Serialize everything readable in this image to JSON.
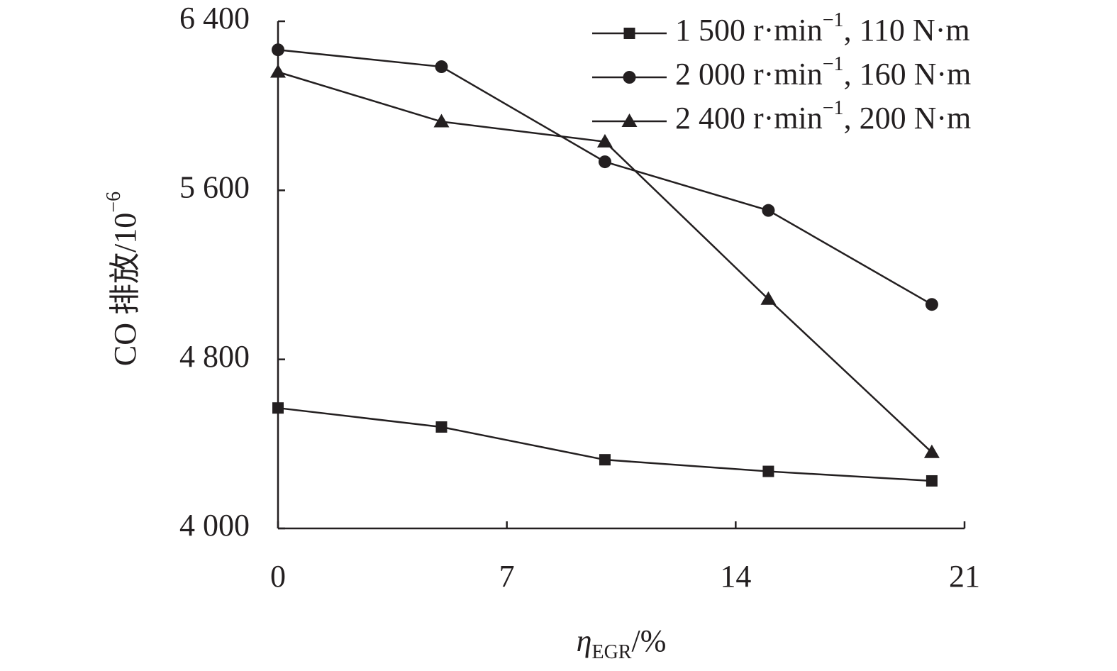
{
  "chart_data": {
    "type": "line",
    "xlabel": "ηEGR/%",
    "xlabel_main": "η",
    "xlabel_sub": "EGR",
    "xlabel_unit": "/%",
    "ylabel": "CO 排放/10⁻⁶",
    "ylabel_main": "CO 排放/10",
    "ylabel_sup": "−6",
    "xlim": [
      0,
      21
    ],
    "ylim": [
      4000,
      6400
    ],
    "x_ticks": [
      0,
      7,
      14,
      21
    ],
    "y_ticks": [
      4000,
      4800,
      5600,
      6400
    ],
    "x_tick_labels": [
      "0",
      "7",
      "14",
      "21"
    ],
    "y_tick_labels": [
      "4 000",
      "4 800",
      "5 600",
      "6 400"
    ],
    "x": [
      0,
      5,
      10,
      15,
      20
    ],
    "grid": false,
    "legend_position": "top-right",
    "series": [
      {
        "name": "1 500 r·min⁻¹, 110 N·m",
        "name_a": "1 500 r·min",
        "name_sup": "−1",
        "name_b": ", 110 N·m",
        "marker": "square",
        "values": [
          4570,
          4480,
          4325,
          4270,
          4225
        ]
      },
      {
        "name": "2 000 r·min⁻¹, 160 N·m",
        "name_a": "2 000 r·min",
        "name_sup": "−1",
        "name_b": ", 160 N·m",
        "marker": "circle",
        "values": [
          6265,
          6185,
          5735,
          5505,
          5060
        ]
      },
      {
        "name": "2 400 r·min⁻¹, 200 N·m",
        "name_a": "2 400 r·min",
        "name_sup": "−1",
        "name_b": ", 200 N·m",
        "marker": "triangle",
        "values": [
          6160,
          5925,
          5830,
          5085,
          4360
        ]
      }
    ]
  }
}
